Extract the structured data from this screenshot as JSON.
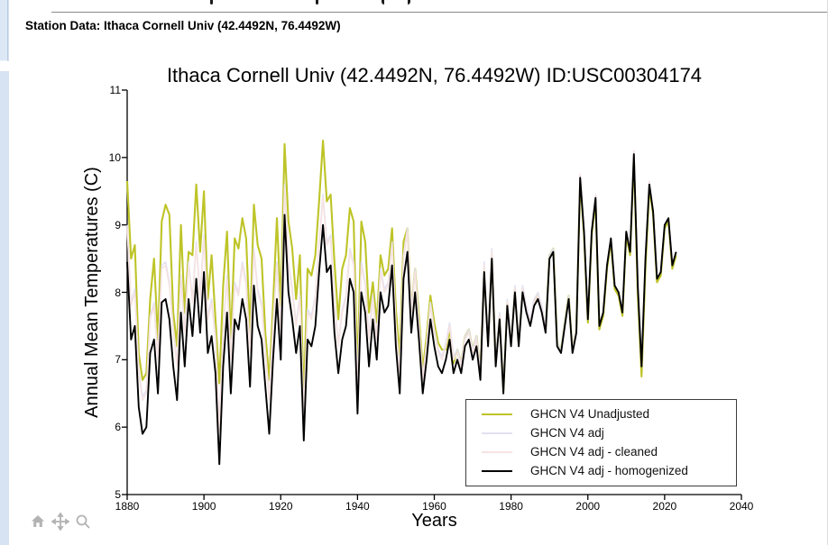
{
  "page": {
    "station_header": "Station Data: Ithaca Cornell Univ (42.4492N, 76.4492W)"
  },
  "toolbar": {
    "icon_color": "#b3b3b3",
    "icons": [
      "home",
      "pan",
      "magnifier"
    ]
  },
  "colors": {
    "left_strip": "#d7e2f2",
    "top_rule": "#8a8a8a",
    "legend_border": "#3c3c3c",
    "axis": "#000000"
  },
  "chart_data": {
    "type": "line",
    "title": "Ithaca Cornell Univ (42.4492N, 76.4492W) ID:USC00304174",
    "xlabel": "Years",
    "ylabel": "Annual Mean Temperatures (C)",
    "xlim": [
      1880,
      2040
    ],
    "ylim": [
      5,
      11
    ],
    "x_ticks": [
      1880,
      1900,
      1920,
      1940,
      1960,
      1980,
      2000,
      2020,
      2040
    ],
    "y_ticks": [
      5,
      6,
      7,
      8,
      9,
      10,
      11
    ],
    "grid": false,
    "legend_position": "inside-lower-right",
    "x_start": 1880,
    "x_step": 1,
    "series": [
      {
        "name": "GHCN V4 Unadjusted",
        "color": "#bec427",
        "width": 2.1,
        "values": [
          9.65,
          8.5,
          8.7,
          7.1,
          6.7,
          6.8,
          7.9,
          8.5,
          7.3,
          9.05,
          9.3,
          9.15,
          7.7,
          7.2,
          9.0,
          7.7,
          8.6,
          8.55,
          9.6,
          8.6,
          9.5,
          7.9,
          8.55,
          7.6,
          6.65,
          8.1,
          8.9,
          7.3,
          8.8,
          8.65,
          9.1,
          8.8,
          7.4,
          9.3,
          8.7,
          8.5,
          7.4,
          6.7,
          7.8,
          9.1,
          7.8,
          10.2,
          9.05,
          8.65,
          7.9,
          8.55,
          6.4,
          8.35,
          8.25,
          8.55,
          9.35,
          10.25,
          9.35,
          9.45,
          8.45,
          7.6,
          8.35,
          8.55,
          9.25,
          9.05,
          6.8,
          9.05,
          8.75,
          7.7,
          8.15,
          7.55,
          8.55,
          8.25,
          8.35,
          8.95,
          7.75,
          7.05,
          8.75,
          8.95,
          7.75,
          8.35,
          7.65,
          6.85,
          7.35,
          7.95,
          7.55,
          7.25,
          7.15,
          7.15,
          7.45,
          6.95,
          7.15,
          6.95,
          7.35,
          7.45,
          7.15,
          7.35,
          6.85,
          8.35,
          7.25,
          8.55,
          6.95,
          7.65,
          6.55,
          7.85,
          7.25,
          8.05,
          7.25,
          8.05,
          7.75,
          7.55,
          7.85,
          7.95,
          7.75,
          7.45,
          8.55,
          8.65,
          7.25,
          7.15,
          7.55,
          7.95,
          7.15,
          7.45,
          9.65,
          8.85,
          7.55,
          8.85,
          9.35,
          7.45,
          7.65,
          8.35,
          8.75,
          8.05,
          7.95,
          7.65,
          8.85,
          8.55,
          10.0,
          7.95,
          6.75,
          8.35,
          9.55,
          9.15,
          8.15,
          8.25,
          8.95,
          9.05,
          8.35,
          8.55
        ]
      },
      {
        "name": "GHCN V4 adj",
        "color": "#e2e1f2",
        "width": 1.6,
        "values": [
          9.0,
          7.85,
          8.05,
          6.85,
          6.45,
          6.55,
          7.65,
          7.85,
          7.05,
          8.4,
          8.45,
          8.15,
          7.45,
          6.95,
          8.25,
          7.45,
          8.45,
          7.9,
          8.75,
          7.95,
          8.85,
          7.65,
          7.9,
          7.35,
          6.0,
          7.45,
          8.25,
          7.05,
          8.15,
          8.0,
          8.45,
          8.15,
          7.15,
          8.65,
          8.05,
          7.85,
          7.15,
          6.45,
          7.55,
          8.45,
          7.45,
          9.6,
          8.45,
          8.05,
          7.55,
          7.95,
          6.25,
          7.75,
          7.65,
          7.95,
          8.75,
          9.45,
          8.75,
          8.85,
          7.85,
          7.25,
          7.75,
          7.95,
          8.65,
          8.45,
          6.65,
          8.45,
          8.15,
          7.35,
          7.95,
          7.35,
          8.35,
          8.05,
          8.15,
          8.75,
          7.55,
          6.85,
          8.55,
          8.95,
          7.75,
          8.35,
          7.55,
          6.75,
          7.25,
          7.85,
          7.45,
          7.15,
          7.05,
          7.25,
          7.55,
          7.05,
          7.15,
          6.95,
          7.35,
          7.45,
          7.15,
          7.35,
          6.85,
          8.45,
          7.35,
          8.65,
          7.0,
          7.7,
          6.6,
          7.9,
          7.3,
          8.1,
          7.3,
          8.1,
          7.8,
          7.6,
          7.9,
          8.0,
          7.8,
          7.5,
          8.55,
          8.65,
          7.25,
          7.15,
          7.55,
          7.95,
          7.15,
          7.45,
          9.75,
          8.9,
          7.6,
          8.9,
          9.45,
          7.5,
          7.7,
          8.4,
          8.8,
          8.1,
          8.0,
          7.7,
          8.9,
          8.6,
          10.1,
          8.1,
          6.9,
          8.5,
          9.65,
          9.2,
          8.2,
          8.3,
          9.0,
          9.1,
          8.4,
          8.6
        ]
      },
      {
        "name": "GHCN V4 adj - cleaned",
        "color": "#f6e3e2",
        "width": 1.6,
        "values": [
          8.95,
          7.8,
          8.0,
          6.8,
          6.4,
          6.5,
          7.6,
          7.8,
          7.0,
          8.35,
          8.4,
          8.1,
          7.4,
          6.9,
          8.2,
          7.4,
          8.4,
          7.85,
          8.7,
          7.9,
          8.8,
          7.6,
          7.85,
          7.3,
          5.95,
          7.4,
          8.2,
          7.0,
          8.1,
          7.95,
          8.4,
          8.1,
          7.1,
          8.6,
          8.0,
          7.8,
          7.1,
          6.4,
          7.5,
          8.4,
          7.4,
          9.55,
          8.4,
          8.0,
          7.5,
          7.9,
          6.2,
          7.7,
          7.6,
          7.9,
          8.7,
          9.4,
          8.7,
          8.8,
          7.8,
          7.2,
          7.7,
          7.9,
          8.6,
          8.4,
          6.6,
          8.4,
          8.1,
          7.3,
          7.9,
          7.3,
          8.3,
          8.0,
          8.1,
          8.7,
          7.5,
          6.8,
          8.5,
          8.9,
          7.7,
          8.3,
          7.5,
          6.7,
          7.2,
          7.8,
          7.4,
          7.1,
          7.0,
          7.2,
          7.5,
          7.0,
          7.1,
          6.9,
          7.3,
          7.4,
          7.1,
          7.3,
          6.8,
          8.4,
          7.3,
          8.6,
          6.95,
          7.65,
          6.55,
          7.85,
          7.25,
          8.05,
          7.25,
          8.05,
          7.75,
          7.55,
          7.85,
          7.95,
          7.75,
          7.45,
          8.5,
          8.6,
          7.2,
          7.1,
          7.5,
          7.9,
          7.15,
          7.45,
          9.75,
          8.9,
          7.6,
          8.9,
          9.45,
          7.5,
          7.7,
          8.4,
          8.8,
          8.1,
          8.0,
          7.7,
          8.9,
          8.6,
          10.1,
          8.1,
          6.9,
          8.5,
          9.65,
          9.2,
          8.2,
          8.3,
          9.0,
          9.1,
          8.4,
          8.6
        ]
      },
      {
        "name": "GHCN V4 adj - homogenized",
        "color": "#000000",
        "width": 1.9,
        "values": [
          8.45,
          7.3,
          7.5,
          6.3,
          5.9,
          6.0,
          7.1,
          7.3,
          6.5,
          7.85,
          7.9,
          7.6,
          6.9,
          6.4,
          7.7,
          6.9,
          7.9,
          7.35,
          8.2,
          7.4,
          8.3,
          7.1,
          7.35,
          6.8,
          5.45,
          6.9,
          7.7,
          6.5,
          7.6,
          7.45,
          7.9,
          7.6,
          6.6,
          8.1,
          7.5,
          7.3,
          6.6,
          5.9,
          7.0,
          7.9,
          7.0,
          9.15,
          8.0,
          7.6,
          7.1,
          7.5,
          5.8,
          7.3,
          7.2,
          7.5,
          8.3,
          9.0,
          8.3,
          8.4,
          7.4,
          6.8,
          7.3,
          7.5,
          8.2,
          8.0,
          6.2,
          8.0,
          7.7,
          6.9,
          7.6,
          7.0,
          8.0,
          7.7,
          7.8,
          8.4,
          7.2,
          6.5,
          8.2,
          8.6,
          7.4,
          8.0,
          7.3,
          6.5,
          7.0,
          7.6,
          7.2,
          6.9,
          6.8,
          7.0,
          7.3,
          6.8,
          7.0,
          6.8,
          7.2,
          7.3,
          7.0,
          7.2,
          6.7,
          8.3,
          7.2,
          8.5,
          6.9,
          7.6,
          6.5,
          7.8,
          7.2,
          8.0,
          7.2,
          8.0,
          7.7,
          7.5,
          7.8,
          7.9,
          7.7,
          7.4,
          8.5,
          8.6,
          7.2,
          7.1,
          7.5,
          7.9,
          7.1,
          7.4,
          9.7,
          8.9,
          7.6,
          8.9,
          9.4,
          7.5,
          7.7,
          8.4,
          8.8,
          8.1,
          8.0,
          7.7,
          8.9,
          8.6,
          10.05,
          8.1,
          6.9,
          8.5,
          9.6,
          9.2,
          8.2,
          8.3,
          9.0,
          9.1,
          8.4,
          8.6
        ]
      }
    ]
  }
}
